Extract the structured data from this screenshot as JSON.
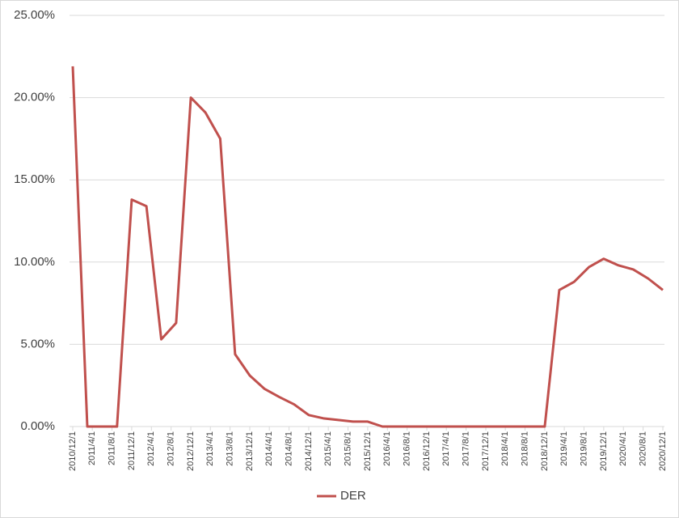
{
  "chart_data": {
    "type": "line",
    "x": [
      "2010/12/1",
      "2011/3/1",
      "2011/6/1",
      "2011/9/1",
      "2011/12/1",
      "2012/3/1",
      "2012/6/1",
      "2012/9/1",
      "2012/12/1",
      "2013/3/1",
      "2013/6/1",
      "2013/9/1",
      "2013/12/1",
      "2014/3/1",
      "2014/6/1",
      "2014/9/1",
      "2014/12/1",
      "2015/3/1",
      "2015/6/1",
      "2015/9/1",
      "2015/12/1",
      "2016/3/1",
      "2016/6/1",
      "2016/9/1",
      "2016/12/1",
      "2017/3/1",
      "2017/6/1",
      "2017/9/1",
      "2017/12/1",
      "2018/3/1",
      "2018/6/1",
      "2018/9/1",
      "2018/12/1",
      "2019/3/1",
      "2019/6/1",
      "2019/9/1",
      "2019/12/1",
      "2020/3/1",
      "2020/6/1",
      "2020/9/1",
      "2020/12/1"
    ],
    "series": [
      {
        "name": "DER",
        "color": "#c0504d",
        "values": [
          21.9,
          0,
          0,
          0,
          13.8,
          13.4,
          5.3,
          6.3,
          20.0,
          19.1,
          17.5,
          4.4,
          3.1,
          2.3,
          1.8,
          1.35,
          0.7,
          0.5,
          0.4,
          0.3,
          0.3,
          0,
          0,
          0,
          0,
          0,
          0,
          0,
          0,
          0,
          0,
          0,
          0,
          8.3,
          8.8,
          9.7,
          10.2,
          9.8,
          9.55,
          9.0,
          8.3
        ]
      }
    ],
    "xlim": [
      "2010/12/1",
      "2020/12/1"
    ],
    "xticks": [
      "2010/12/1",
      "2011/4/1",
      "2011/8/1",
      "2011/12/1",
      "2012/4/1",
      "2012/8/1",
      "2012/12/1",
      "2013/4/1",
      "2013/8/1",
      "2013/12/1",
      "2014/4/1",
      "2014/8/1",
      "2014/12/1",
      "2015/4/1",
      "2015/8/1",
      "2015/12/1",
      "2016/4/1",
      "2016/8/1",
      "2016/12/1",
      "2017/4/1",
      "2017/8/1",
      "2017/12/1",
      "2018/4/1",
      "2018/8/1",
      "2018/12/1",
      "2019/4/1",
      "2019/8/1",
      "2019/12/1",
      "2020/4/1",
      "2020/8/1",
      "2020/12/1"
    ],
    "ylim": [
      0,
      25
    ],
    "yticks": [
      {
        "value": 0,
        "label": "0.00%"
      },
      {
        "value": 5,
        "label": "5.00%"
      },
      {
        "value": 10,
        "label": "10.00%"
      },
      {
        "value": 15,
        "label": "15.00%"
      },
      {
        "value": 20,
        "label": "20.00%"
      },
      {
        "value": 25,
        "label": "25.00%"
      }
    ],
    "grid": true,
    "legend": "bottom"
  }
}
